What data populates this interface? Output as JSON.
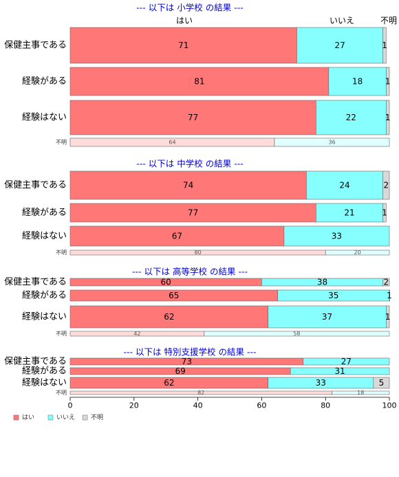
{
  "colors": {
    "hai": "#ff7777",
    "iie": "#88ffff",
    "fumei": "#d9d9d9",
    "title": "#0000dd"
  },
  "legend": {
    "position": "bottom-left",
    "items": [
      "はい",
      "いいえ",
      "不明"
    ]
  },
  "chart_data": {
    "type": "bar",
    "orientation": "horizontal",
    "stacked": true,
    "xlim": [
      0,
      100
    ],
    "x_ticks": [
      0,
      20,
      40,
      60,
      80,
      100
    ],
    "top_labels": [
      "はい",
      "いいえ",
      "不明"
    ],
    "series": [
      "はい",
      "いいえ",
      "不明"
    ],
    "panels": [
      {
        "title": "--- 以下は 小学校 の結果 ---",
        "rows": [
          {
            "label": "保健主事である",
            "values": [
              71,
              27,
              1
            ]
          },
          {
            "label": "経験がある",
            "values": [
              81,
              18,
              1
            ]
          },
          {
            "label": "経験はない",
            "values": [
              77,
              22,
              1
            ]
          },
          {
            "label": "不明",
            "values": [
              64,
              36,
              0
            ]
          }
        ]
      },
      {
        "title": "--- 以下は 中学校 の結果 ---",
        "rows": [
          {
            "label": "保健主事である",
            "values": [
              74,
              24,
              2
            ]
          },
          {
            "label": "経験がある",
            "values": [
              77,
              21,
              1
            ]
          },
          {
            "label": "経験はない",
            "values": [
              67,
              33,
              0
            ]
          },
          {
            "label": "不明",
            "values": [
              80,
              20,
              0
            ]
          }
        ]
      },
      {
        "title": "--- 以下は 高等学校 の結果 ---",
        "rows": [
          {
            "label": "保健主事である",
            "values": [
              60,
              38,
              2
            ]
          },
          {
            "label": "経験がある",
            "values": [
              65,
              35,
              1
            ]
          },
          {
            "label": "経験はない",
            "values": [
              62,
              37,
              1
            ]
          },
          {
            "label": "不明",
            "values": [
              42,
              58,
              0
            ]
          }
        ]
      },
      {
        "title": "--- 以下は 特別支援学校 の結果 ---",
        "rows": [
          {
            "label": "保健主事である",
            "values": [
              73,
              27,
              0
            ]
          },
          {
            "label": "経験がある",
            "values": [
              69,
              31,
              0
            ]
          },
          {
            "label": "経験はない",
            "values": [
              62,
              33,
              5
            ]
          },
          {
            "label": "不明",
            "values": [
              82,
              18,
              0
            ]
          }
        ]
      }
    ]
  }
}
